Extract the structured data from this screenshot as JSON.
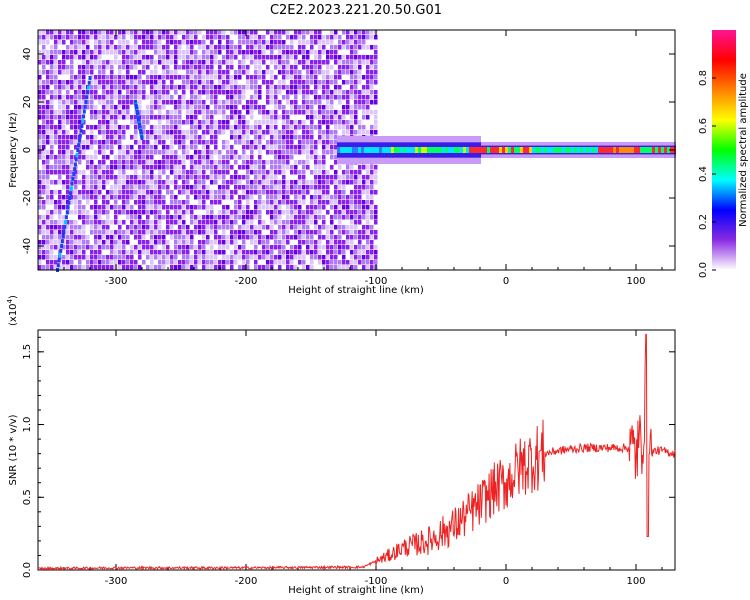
{
  "title": "C2E2.2023.221.20.50.G01",
  "chart_data": [
    {
      "type": "heatmap",
      "xlabel": "Height of straight line (km)",
      "ylabel": "Frequency (Hz)",
      "xlim": [
        -360,
        130
      ],
      "ylim": [
        -50,
        50
      ],
      "xticks": [
        -300,
        -200,
        -100,
        0,
        100
      ],
      "yticks": [
        -40,
        -20,
        0,
        20,
        40
      ],
      "colorbar": {
        "label": "Normalized spectral amplitude",
        "range": [
          0.0,
          1.0
        ],
        "ticks": [
          "0.0",
          "0.2",
          "0.4",
          "0.6",
          "0.8"
        ],
        "colors": [
          "#ffffff",
          "#8a2be2",
          "#0000ff",
          "#00ffff",
          "#00ff00",
          "#ffff00",
          "#ff8000",
          "#ff0000",
          "#ff1493"
        ]
      },
      "noise_region_x": [
        -360,
        -100
      ],
      "signal_center_hz": 0,
      "features": [
        {
          "x": [
            -345,
            -320
          ],
          "y": [
            -50,
            30
          ]
        },
        {
          "x": [
            -285,
            -280
          ],
          "y": [
            20,
            5
          ]
        }
      ]
    },
    {
      "type": "line",
      "xlabel": "Height of straight line (km)",
      "ylabel": "SNR (10 * v/v)",
      "multiplier": "(x10",
      "multiplier_exp": "4",
      "xlim": [
        -360,
        130
      ],
      "ylim": [
        0,
        1.65
      ],
      "xticks": [
        -300,
        -200,
        -100,
        0,
        100
      ],
      "yticks": [
        "0.0",
        "0.5",
        "1.0",
        "1.5"
      ],
      "series": [
        {
          "color": "#ee2222",
          "x": [
            -360,
            -300,
            -200,
            -110,
            -90,
            -80,
            -60,
            -40,
            -20,
            -10,
            0,
            10,
            20,
            30,
            40,
            50,
            60,
            80,
            95,
            100,
            105,
            108,
            110,
            115,
            120,
            130
          ],
          "y": [
            0.01,
            0.015,
            0.015,
            0.02,
            0.1,
            0.15,
            0.2,
            0.3,
            0.45,
            0.55,
            0.6,
            0.7,
            0.76,
            0.8,
            0.82,
            0.83,
            0.84,
            0.84,
            0.84,
            0.8,
            0.9,
            1.3,
            0.8,
            0.82,
            0.82,
            0.8
          ]
        }
      ]
    }
  ]
}
